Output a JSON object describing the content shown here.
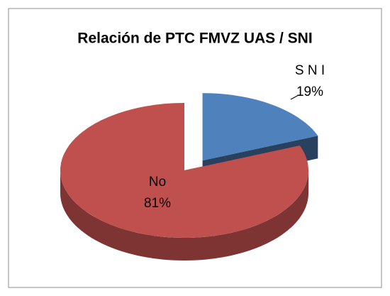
{
  "chart_data": {
    "type": "pie3d",
    "title": "Relación de PTC FMVZ UAS / SNI",
    "categories": [
      "S N I",
      "No"
    ],
    "values": [
      19,
      81
    ],
    "value_labels": [
      "19%",
      "81%"
    ],
    "colors": [
      "#4f81bd",
      "#c0504d"
    ],
    "explode": [
      true,
      false
    ]
  }
}
